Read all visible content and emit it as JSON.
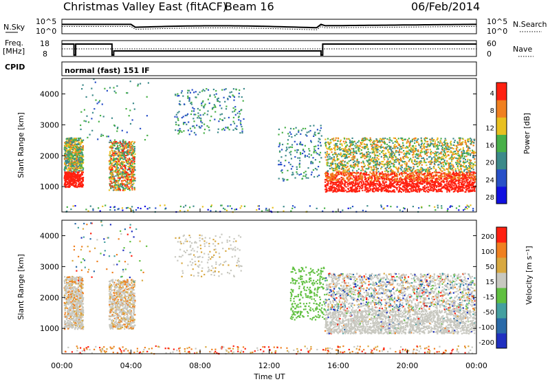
{
  "header": {
    "title": "Christmas Valley East (fitACF)",
    "beam": "Beam 16",
    "date": "06/Feb/2014"
  },
  "panel_labels": {
    "nsky": "N.Sky",
    "freq": "Freq.",
    "mhz": "[MHz]",
    "cpid": "CPID",
    "nsearch": "N.Search",
    "nave": "Nave",
    "mode": "normal (fast) 151 IF"
  },
  "top_ticks": {
    "nsky_left": [
      "10^5",
      "10^0"
    ],
    "nsky_right": [
      "10^5",
      "10^0"
    ],
    "freq_left": [
      "18",
      "8"
    ],
    "nave_right": [
      "60",
      "0"
    ]
  },
  "chart_data": [
    {
      "type": "heatmap",
      "name": "power",
      "ylabel": "Slant Range [km]",
      "yticks": [
        1000,
        2000,
        3000,
        4000
      ],
      "ylim": [
        180,
        4500
      ],
      "colorbar_label": "Power [dB]",
      "colorbar_ticks": [
        "4",
        "8",
        "12",
        "16",
        "20",
        "24",
        "28"
      ],
      "colorbar_colors": [
        "#1010e0",
        "#2850c8",
        "#3c8a8a",
        "#48b048",
        "#e8c020",
        "#f08020",
        "#ff2010"
      ],
      "legend_position": "right"
    },
    {
      "type": "heatmap",
      "name": "velocity",
      "ylabel": "Slant Range [km]",
      "yticks": [
        1000,
        2000,
        3000,
        4000
      ],
      "ylim": [
        180,
        4500
      ],
      "colorbar_label": "Velocity [m s⁻¹]",
      "colorbar_ticks": [
        "200",
        "100",
        "50",
        "15",
        "-15",
        "-50",
        "-100",
        "-200"
      ],
      "colorbar_colors": [
        "#2030c0",
        "#2a6aa8",
        "#44a0a0",
        "#60c040",
        "#c8c8c0",
        "#d8a840",
        "#f08020",
        "#ff2010"
      ],
      "legend_position": "right"
    }
  ],
  "xaxis": {
    "label": "Time UT",
    "ticks": [
      "00:00",
      "04:00",
      "08:00",
      "12:00",
      "16:00",
      "20:00",
      "00:00"
    ]
  }
}
